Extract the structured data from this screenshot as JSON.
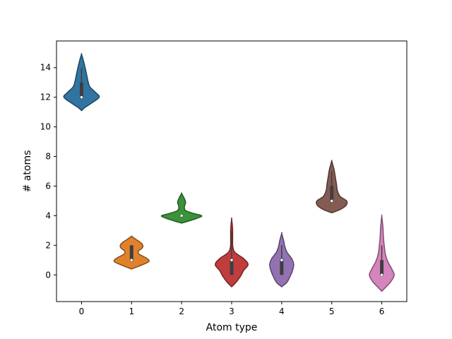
{
  "chart_data": {
    "type": "violin",
    "title": "",
    "xlabel": "Atom type",
    "ylabel": "# atoms",
    "categories": [
      "0",
      "1",
      "2",
      "3",
      "4",
      "5",
      "6"
    ],
    "ylim": [
      -1.8,
      15.8
    ],
    "yticks": [
      0,
      2,
      4,
      6,
      8,
      10,
      12,
      14
    ],
    "grid": false,
    "violins": [
      {
        "category": "0",
        "color": "#3274a1",
        "min": 11.1,
        "max": 14.9,
        "q1": 12.0,
        "median": 12.0,
        "q3": 13.0,
        "whisker_low": 12.0,
        "whisker_high": 14.0,
        "density": [
          [
            11.1,
            0
          ],
          [
            11.3,
            0.16
          ],
          [
            11.6,
            0.5
          ],
          [
            12.0,
            0.88
          ],
          [
            12.3,
            0.72
          ],
          [
            12.7,
            0.42
          ],
          [
            13.1,
            0.32
          ],
          [
            13.5,
            0.26
          ],
          [
            14.0,
            0.18
          ],
          [
            14.5,
            0.09
          ],
          [
            14.9,
            0
          ]
        ]
      },
      {
        "category": "1",
        "color": "#e1812c",
        "min": 0.4,
        "max": 2.6,
        "q1": 1.0,
        "median": 1.0,
        "q3": 2.0,
        "whisker_low": 1.0,
        "whisker_high": 2.0,
        "density": [
          [
            0.4,
            0
          ],
          [
            0.6,
            0.38
          ],
          [
            0.9,
            0.86
          ],
          [
            1.15,
            0.72
          ],
          [
            1.4,
            0.38
          ],
          [
            1.6,
            0.34
          ],
          [
            1.85,
            0.55
          ],
          [
            2.1,
            0.52
          ],
          [
            2.4,
            0.22
          ],
          [
            2.6,
            0
          ]
        ]
      },
      {
        "category": "2",
        "color": "#3a923a",
        "min": 3.5,
        "max": 5.5,
        "q1": 4.0,
        "median": 4.0,
        "q3": 4.0,
        "whisker_low": 4.0,
        "whisker_high": 4.0,
        "density": [
          [
            3.5,
            0
          ],
          [
            3.65,
            0.38
          ],
          [
            3.85,
            0.82
          ],
          [
            4.0,
            1.0
          ],
          [
            4.15,
            0.6
          ],
          [
            4.35,
            0.2
          ],
          [
            4.6,
            0.14
          ],
          [
            4.9,
            0.2
          ],
          [
            5.2,
            0.12
          ],
          [
            5.5,
            0
          ]
        ]
      },
      {
        "category": "3",
        "color": "#c03d3e",
        "min": -0.8,
        "max": 3.8,
        "q1": 0.0,
        "median": 1.0,
        "q3": 1.0,
        "whisker_low": 0.0,
        "whisker_high": 3.0,
        "density": [
          [
            -0.8,
            0
          ],
          [
            -0.5,
            0.22
          ],
          [
            -0.1,
            0.44
          ],
          [
            0.3,
            0.6
          ],
          [
            0.7,
            0.82
          ],
          [
            1.1,
            0.6
          ],
          [
            1.5,
            0.18
          ],
          [
            1.9,
            0.06
          ],
          [
            2.5,
            0.05
          ],
          [
            3.0,
            0.05
          ],
          [
            3.4,
            0.03
          ],
          [
            3.8,
            0
          ]
        ]
      },
      {
        "category": "4",
        "color": "#9372b2",
        "min": -0.8,
        "max": 2.8,
        "q1": 0.0,
        "median": 1.0,
        "q3": 1.0,
        "whisker_low": 0.0,
        "whisker_high": 2.0,
        "density": [
          [
            -0.8,
            0
          ],
          [
            -0.5,
            0.26
          ],
          [
            -0.1,
            0.42
          ],
          [
            0.3,
            0.54
          ],
          [
            0.7,
            0.6
          ],
          [
            1.1,
            0.5
          ],
          [
            1.5,
            0.28
          ],
          [
            1.9,
            0.16
          ],
          [
            2.3,
            0.1
          ],
          [
            2.8,
            0
          ]
        ]
      },
      {
        "category": "5",
        "color": "#845b53",
        "min": 4.2,
        "max": 7.7,
        "q1": 5.0,
        "median": 5.0,
        "q3": 6.0,
        "whisker_low": 5.0,
        "whisker_high": 7.0,
        "density": [
          [
            4.2,
            0
          ],
          [
            4.4,
            0.4
          ],
          [
            4.7,
            0.72
          ],
          [
            5.0,
            0.74
          ],
          [
            5.3,
            0.42
          ],
          [
            5.7,
            0.28
          ],
          [
            6.1,
            0.24
          ],
          [
            6.6,
            0.18
          ],
          [
            7.1,
            0.12
          ],
          [
            7.4,
            0.06
          ],
          [
            7.7,
            0
          ]
        ]
      },
      {
        "category": "6",
        "color": "#d684bd",
        "min": -1.1,
        "max": 4.0,
        "q1": 0.0,
        "median": 0.0,
        "q3": 1.0,
        "whisker_low": 0.0,
        "whisker_high": 2.0,
        "density": [
          [
            -1.1,
            0
          ],
          [
            -0.8,
            0.22
          ],
          [
            -0.4,
            0.48
          ],
          [
            0.0,
            0.62
          ],
          [
            0.4,
            0.5
          ],
          [
            0.9,
            0.3
          ],
          [
            1.4,
            0.18
          ],
          [
            2.0,
            0.12
          ],
          [
            2.6,
            0.08
          ],
          [
            3.2,
            0.06
          ],
          [
            3.6,
            0.03
          ],
          [
            4.0,
            0
          ]
        ]
      }
    ]
  }
}
